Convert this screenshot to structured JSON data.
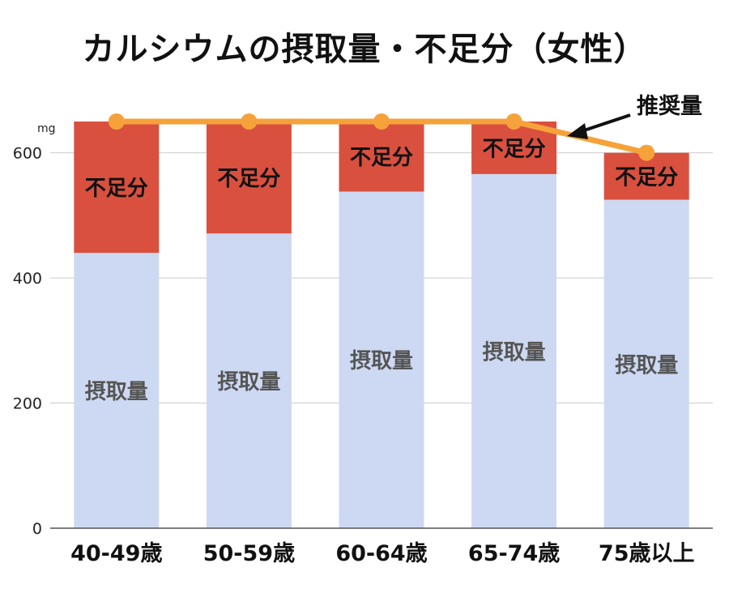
{
  "chart_data": {
    "type": "bar",
    "stacked": true,
    "title": "カルシウムの摂取量・不足分（女性）",
    "y_unit": "mg",
    "ylim": [
      0,
      650
    ],
    "yticks": [
      0,
      200,
      400,
      600
    ],
    "grid": true,
    "categories": [
      "40-49歳",
      "50-59歳",
      "60-64歳",
      "65-74歳",
      "75歳以上"
    ],
    "series": [
      {
        "name": "摂取量",
        "values": [
          440,
          471,
          538,
          566,
          525
        ],
        "color": "#cdd9f2"
      },
      {
        "name": "不足分",
        "values": [
          210,
          179,
          112,
          84,
          75
        ],
        "color": "#d9503f"
      }
    ],
    "line": {
      "name": "推奨量",
      "values": [
        650,
        650,
        650,
        650,
        600
      ],
      "color": "#f5a23a"
    },
    "annotation": {
      "text": "推奨量"
    }
  }
}
